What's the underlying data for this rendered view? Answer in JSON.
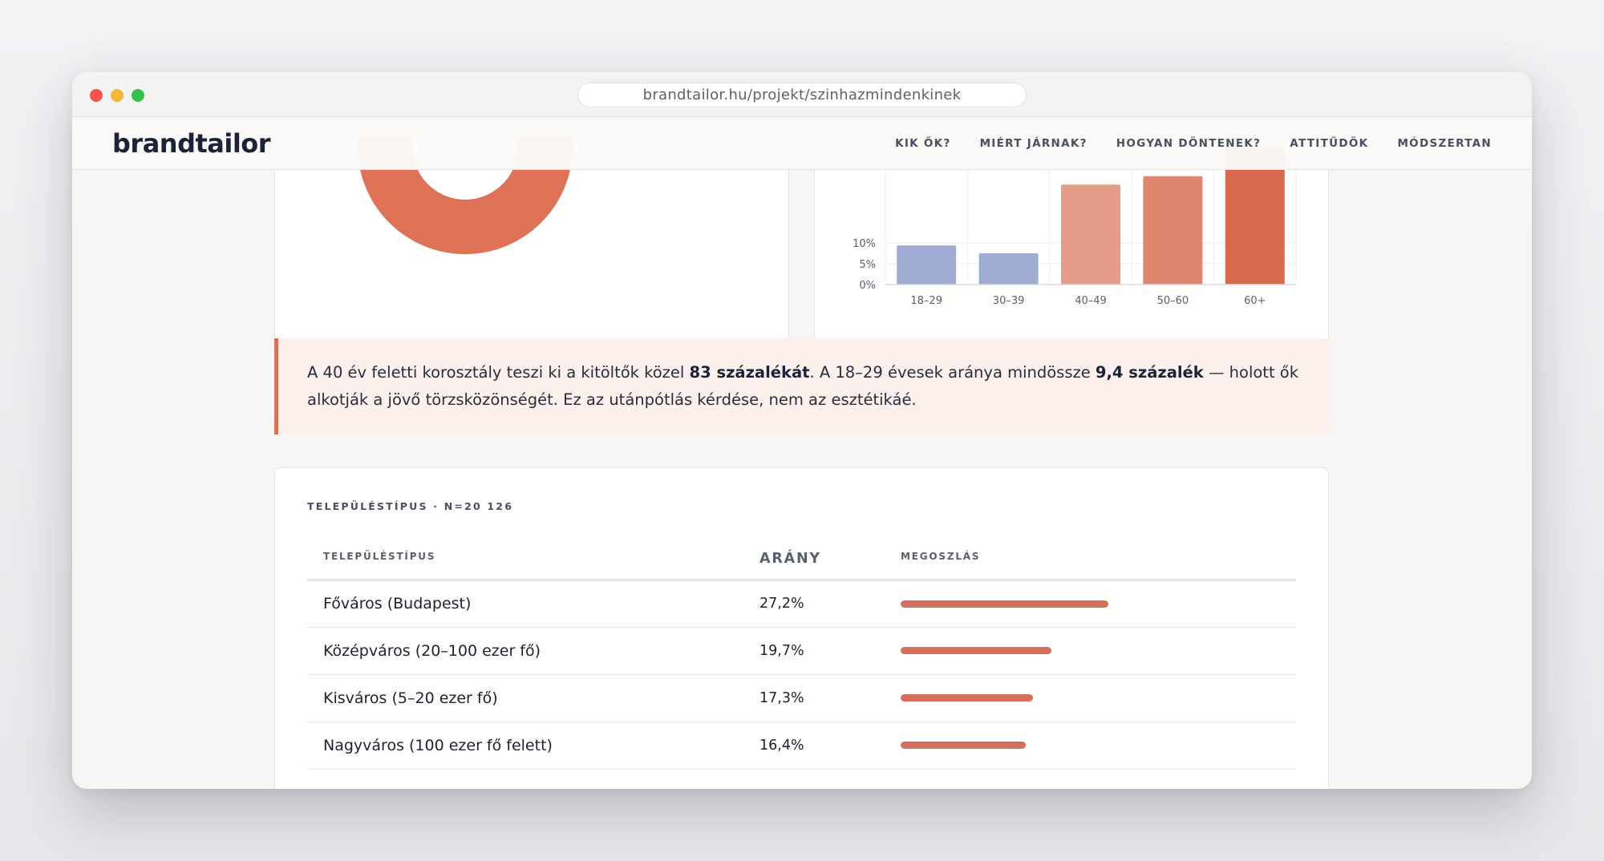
{
  "browser": {
    "url": "brandtailor.hu/projekt/szinhazmindenkinek"
  },
  "nav": {
    "logo": "brandtailor",
    "links": [
      "KIK ŐK?",
      "MIÉRT JÁRNAK?",
      "HOGYAN DÖNTENEK?",
      "ATTITŰDÖK",
      "MÓDSZERTAN"
    ]
  },
  "colors": {
    "accent": "#d6705a",
    "blue_bar": "#a0acd4",
    "light_salmon": "#e49d89",
    "salmon": "#dd8670",
    "dark_salmon": "#d8694f",
    "navy": "#1c2238"
  },
  "donut": {
    "color": "#dd7257"
  },
  "chart_data": {
    "type": "bar",
    "categories": [
      "18–29",
      "30–39",
      "40–49",
      "50–60",
      "60+"
    ],
    "values": [
      9.4,
      7.5,
      24,
      26,
      33
    ],
    "ytick_labels": [
      "0%",
      "5%",
      "10%"
    ],
    "ylim": [
      0,
      35
    ],
    "grid": true
  },
  "callout": {
    "part1": "A 40 év feletti korosztály teszi ki a kitöltők közel ",
    "bold1": "83 százalékát",
    "part2": ". A 18–29 évesek aránya mindössze ",
    "bold2": "9,4 százalék",
    "part3": " — holott ők alkotják a jövő törzsközönségét. Ez az utánpótlás kérdése, nem az esztétikáé."
  },
  "table": {
    "eyebrow": "TELEPÜLÉSTÍPUS · N=20 126",
    "headers": [
      "TELEPÜLÉSTÍPUS",
      "ARÁNY",
      "MEGOSZLÁS"
    ],
    "rows": [
      {
        "name": "Főváros (Budapest)",
        "pct": "27,2%",
        "value": 27.2
      },
      {
        "name": "Középváros (20–100 ezer fő)",
        "pct": "19,7%",
        "value": 19.7
      },
      {
        "name": "Kisváros (5–20 ezer fő)",
        "pct": "17,3%",
        "value": 17.3
      },
      {
        "name": "Nagyváros (100 ezer fő felett)",
        "pct": "16,4%",
        "value": 16.4
      }
    ],
    "bar_max": 42
  }
}
